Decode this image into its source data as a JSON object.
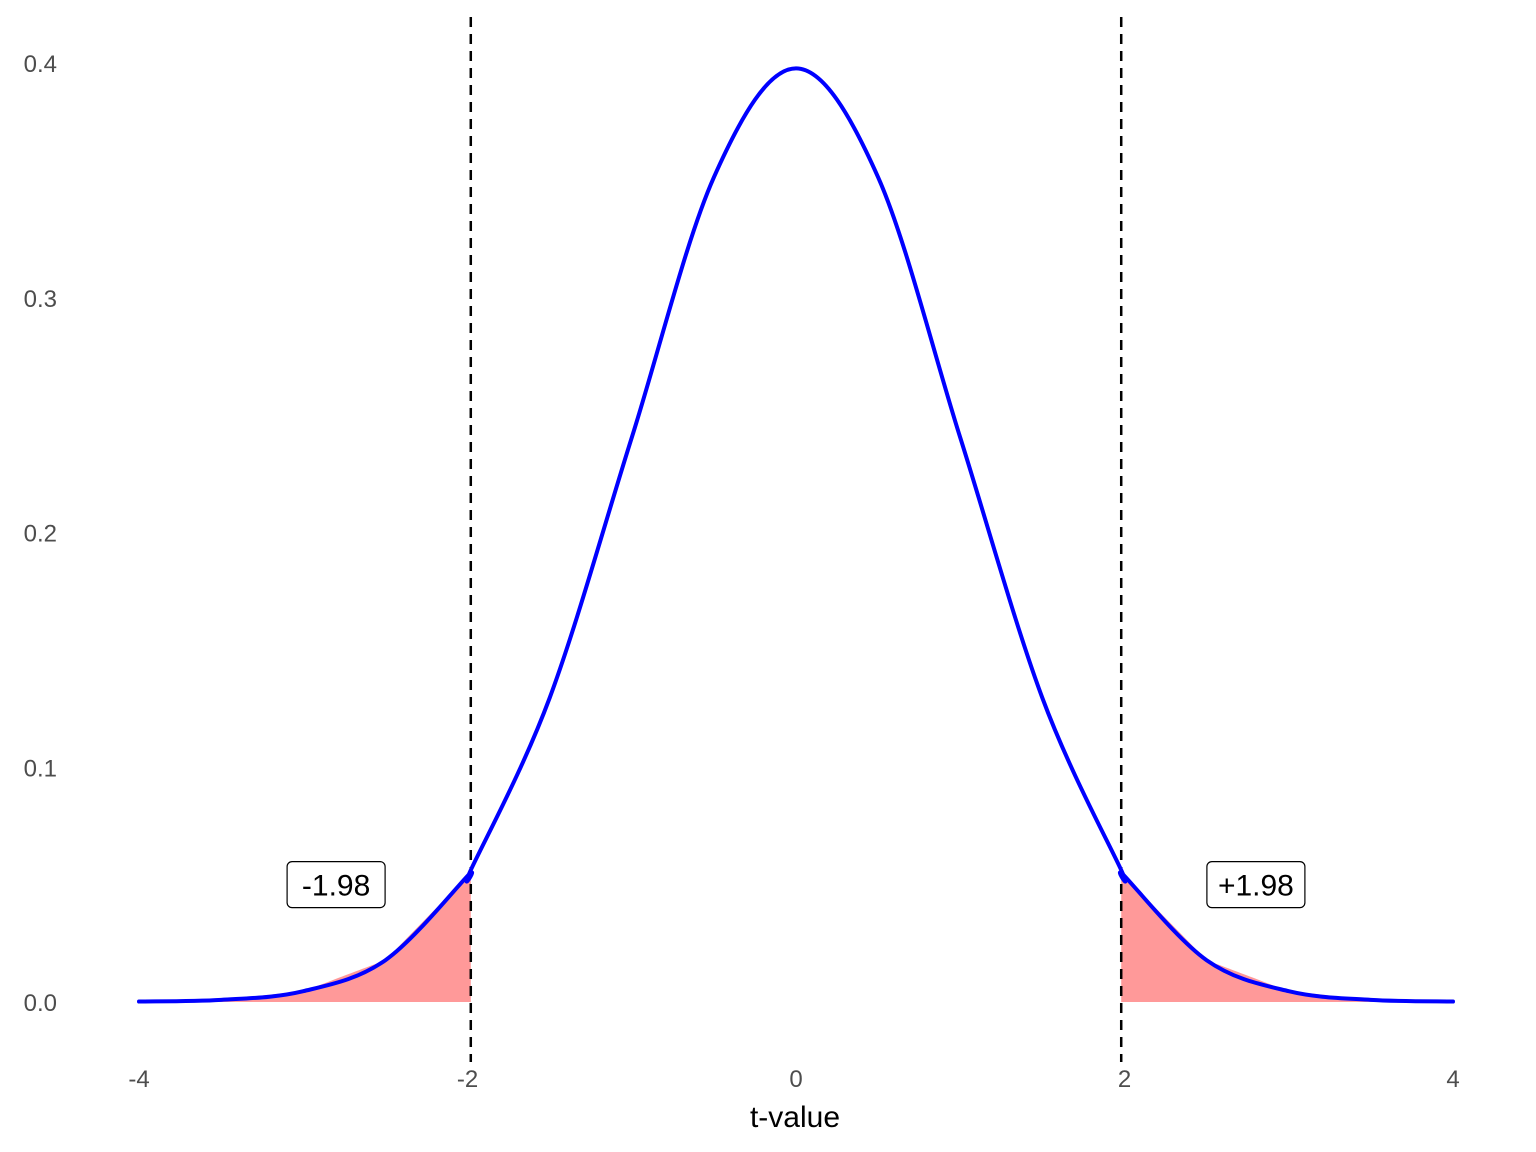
{
  "chart_data": {
    "type": "area",
    "title": "",
    "xlabel": "t-value",
    "ylabel": "",
    "xlim": [
      -4,
      4
    ],
    "ylim": [
      0,
      0.4
    ],
    "x_ticks": [
      -4,
      -2,
      0,
      2,
      4
    ],
    "x_tick_labels": [
      "-4",
      "-2",
      "0",
      "2",
      "4"
    ],
    "y_ticks": [
      0,
      0.1,
      0.2,
      0.3,
      0.4
    ],
    "y_tick_labels": [
      "0.0",
      "0.1",
      "0.2",
      "0.3",
      "0.4"
    ],
    "grid": false,
    "legend": "none",
    "series": [
      {
        "x": [
          -4,
          -3.5,
          -3,
          -2.5,
          -2,
          -1.98,
          -1.5,
          -1,
          -0.5,
          0,
          0.5,
          1,
          1.5,
          1.98,
          2,
          2.5,
          3,
          3.5,
          4
        ],
        "y": [
          0.0002,
          0.0009,
          0.0046,
          0.0178,
          0.0537,
          0.0562,
          0.1295,
          0.2404,
          0.3513,
          0.3977,
          0.3513,
          0.2404,
          0.1295,
          0.0562,
          0.0537,
          0.0178,
          0.0046,
          0.0009,
          0.0002
        ],
        "color": "#0000ff"
      }
    ],
    "critical_values": [
      -1.98,
      1.98
    ],
    "shaded_tails": {
      "left": [
        -4,
        -1.98
      ],
      "right": [
        1.98,
        4
      ],
      "color": "#ff9999"
    },
    "annotations": [
      {
        "text": "-1.98",
        "x": -2.8,
        "y": 0.05
      },
      {
        "text": "+1.98",
        "x": 2.8,
        "y": 0.05
      }
    ]
  }
}
